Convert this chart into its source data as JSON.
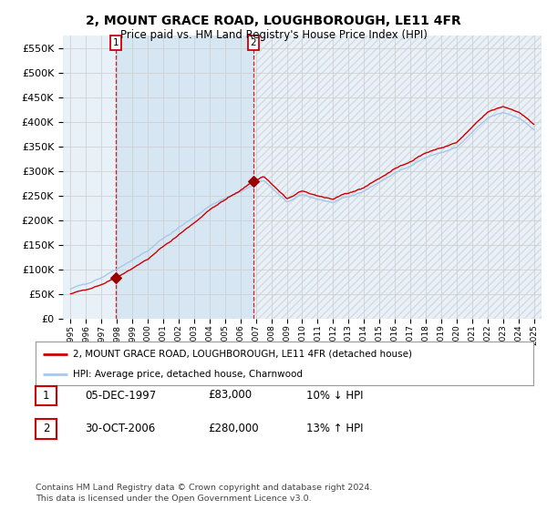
{
  "title": "2, MOUNT GRACE ROAD, LOUGHBOROUGH, LE11 4FR",
  "subtitle": "Price paid vs. HM Land Registry's House Price Index (HPI)",
  "ylim": [
    0,
    575000
  ],
  "yticks": [
    0,
    50000,
    100000,
    150000,
    200000,
    250000,
    300000,
    350000,
    400000,
    450000,
    500000,
    550000
  ],
  "sale1": {
    "date_num": 1997.92,
    "price": 83000,
    "label": "1",
    "date_str": "05-DEC-1997"
  },
  "sale2": {
    "date_num": 2006.83,
    "price": 280000,
    "label": "2",
    "date_str": "30-OCT-2006"
  },
  "line_color_hpi": "#a8c8e8",
  "line_color_price": "#cc0000",
  "sale_dot_color": "#990000",
  "vline_color": "#cc0000",
  "grid_color": "#cccccc",
  "bg_color": "#ffffff",
  "plot_bg_color": "#e8f0f8",
  "shade_between_color": "#d0e4f4",
  "legend_label1": "2, MOUNT GRACE ROAD, LOUGHBOROUGH, LE11 4FR (detached house)",
  "legend_label2": "HPI: Average price, detached house, Charnwood",
  "footnote": "Contains HM Land Registry data © Crown copyright and database right 2024.\nThis data is licensed under the Open Government Licence v3.0.",
  "table_rows": [
    {
      "label": "1",
      "date": "05-DEC-1997",
      "price": "£83,000",
      "pct": "10% ↓ HPI"
    },
    {
      "label": "2",
      "date": "30-OCT-2006",
      "price": "£280,000",
      "pct": "13% ↑ HPI"
    }
  ],
  "xmin": 1994.5,
  "xmax": 2025.5,
  "hpi_seed": 42,
  "hpi_start": 1995.0,
  "hpi_end": 2025.0,
  "hpi_points": 360
}
